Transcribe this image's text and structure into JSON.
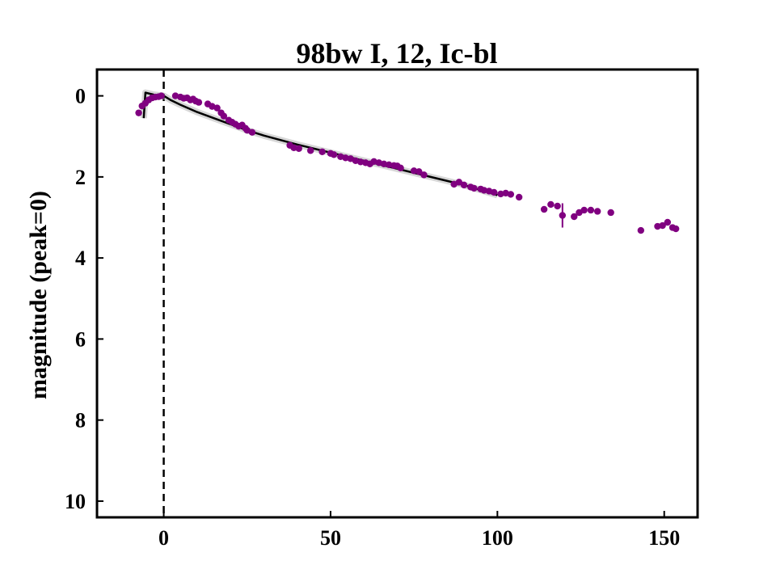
{
  "chart_data": {
    "type": "scatter",
    "title": "98bw I, 12, Ic-bl",
    "xlabel": "",
    "ylabel": "magnitude (peak=0)",
    "xlim": [
      -20,
      160
    ],
    "ylim": [
      10.4,
      -0.65
    ],
    "y_inverted": true,
    "grid": false,
    "xticks": [
      0,
      50,
      100,
      150
    ],
    "xtick_labels": [
      "0",
      "50",
      "100",
      "150"
    ],
    "yticks": [
      0,
      2,
      4,
      6,
      8,
      10
    ],
    "ytick_labels": [
      "0",
      "2",
      "4",
      "6",
      "8",
      "10"
    ],
    "peak_line_x": 0,
    "colors": {
      "points": "#800080",
      "template": "#000000",
      "band": "#b0b0b0"
    },
    "series": [
      {
        "kind": "points",
        "x": [
          -7.5,
          -6.5,
          -5.5,
          -4.5,
          -3.5,
          -2.5,
          -1.5,
          -0.7,
          3.5,
          5.0,
          6.0,
          7.0,
          8.0,
          8.8,
          9.6,
          10.5,
          13.2,
          14.5,
          16.0,
          17.2,
          18.0,
          19.5,
          20.5,
          21.5,
          22.5,
          23.5,
          24.5,
          25.0,
          26.5,
          37.8,
          39.0,
          40.5,
          44.0,
          47.5,
          50.0,
          51.0,
          53.0,
          54.5,
          56.0,
          57.5,
          59.0,
          60.5,
          61.8,
          63.0,
          64.5,
          66.0,
          67.5,
          69.0,
          70.0,
          71.0,
          75.0,
          76.5,
          78.0,
          87.0,
          88.5,
          90.0,
          92.0,
          93.0,
          95.0,
          96.0,
          97.5,
          99.0,
          101.0,
          102.5,
          104.0,
          106.5,
          114.0,
          116.0,
          118.0,
          119.5,
          123.0,
          124.5,
          126.0,
          128.0,
          130.0,
          134.0,
          143.0,
          148.0,
          149.5,
          151.0,
          152.5,
          153.5
        ],
        "y": [
          0.42,
          0.25,
          0.18,
          0.1,
          0.05,
          0.03,
          0.02,
          0.0,
          0.0,
          0.03,
          0.06,
          0.05,
          0.1,
          0.08,
          0.13,
          0.16,
          0.2,
          0.26,
          0.3,
          0.42,
          0.5,
          0.6,
          0.65,
          0.7,
          0.75,
          0.72,
          0.8,
          0.85,
          0.9,
          1.22,
          1.28,
          1.3,
          1.35,
          1.38,
          1.42,
          1.45,
          1.5,
          1.53,
          1.55,
          1.6,
          1.63,
          1.65,
          1.68,
          1.62,
          1.65,
          1.68,
          1.7,
          1.72,
          1.73,
          1.78,
          1.85,
          1.87,
          1.95,
          2.18,
          2.13,
          2.2,
          2.25,
          2.28,
          2.3,
          2.33,
          2.35,
          2.38,
          2.42,
          2.4,
          2.43,
          2.5,
          2.8,
          2.68,
          2.72,
          2.95,
          2.98,
          2.88,
          2.82,
          2.82,
          2.85,
          2.88,
          3.32,
          3.22,
          3.2,
          3.12,
          3.25,
          3.28
        ],
        "error_x": [
          119.5
        ],
        "error_y": [
          2.95
        ],
        "error_size": [
          0.3
        ]
      },
      {
        "kind": "template",
        "x": [
          -6,
          -5.5,
          -3,
          0,
          2,
          5,
          10,
          15,
          20,
          25,
          30,
          40,
          50,
          60,
          70,
          80,
          90,
          100
        ],
        "y": [
          0.55,
          -0.08,
          -0.03,
          0.0,
          0.1,
          0.22,
          0.4,
          0.55,
          0.7,
          0.85,
          0.98,
          1.2,
          1.4,
          1.6,
          1.8,
          2.0,
          2.2,
          2.45
        ]
      }
    ]
  }
}
